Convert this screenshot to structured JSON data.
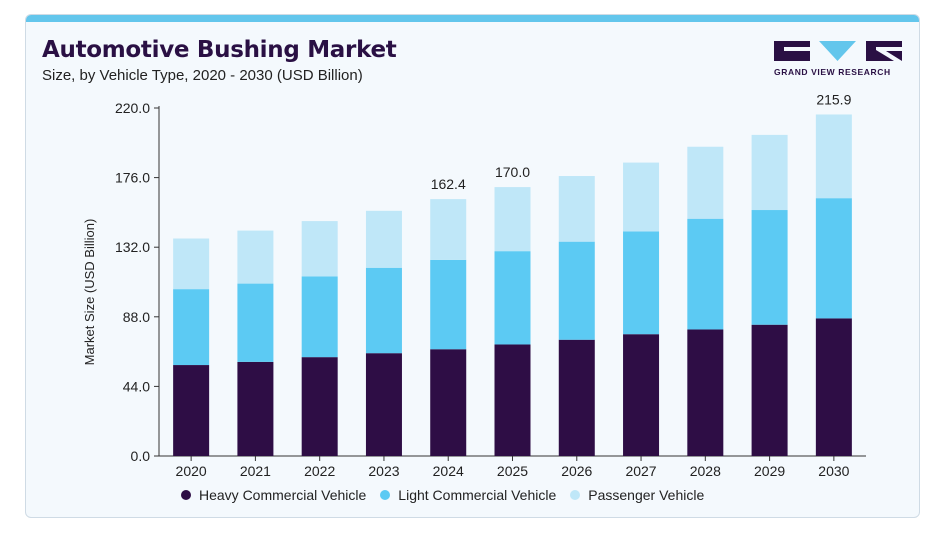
{
  "header": {
    "title": "Automotive Bushing Market",
    "subtitle": "Size, by Vehicle Type, 2020 - 2030 (USD Billion)"
  },
  "logo": {
    "text": "GRAND VIEW RESEARCH",
    "color": "#2a1044",
    "accent": "#63c6ec"
  },
  "chart_data": {
    "type": "bar",
    "stacked": true,
    "categories": [
      "2020",
      "2021",
      "2022",
      "2023",
      "2024",
      "2025",
      "2026",
      "2027",
      "2028",
      "2029",
      "2030"
    ],
    "series": [
      {
        "name": "Heavy Commercial Vehicle",
        "color": "#2e0d45",
        "values": [
          57.5,
          59.5,
          62.5,
          65.0,
          67.5,
          70.5,
          73.5,
          77.0,
          80.0,
          83.0,
          87.0
        ]
      },
      {
        "name": "Light Commercial Vehicle",
        "color": "#5ccaf3",
        "values": [
          48.0,
          49.5,
          51.0,
          54.0,
          56.5,
          59.0,
          62.0,
          65.0,
          70.0,
          72.5,
          76.0
        ]
      },
      {
        "name": "Passenger Vehicle",
        "color": "#bfe7f8",
        "values": [
          32.0,
          33.5,
          35.0,
          36.0,
          38.4,
          40.5,
          41.5,
          43.5,
          45.5,
          47.5,
          52.9
        ]
      }
    ],
    "data_labels": [
      {
        "category": "2024",
        "label": "162.4"
      },
      {
        "category": "2025",
        "label": "170.0"
      },
      {
        "category": "2030",
        "label": "215.9"
      }
    ],
    "ylabel": "Market Size (USD Billion)",
    "xlabel": "",
    "ylim": [
      0,
      220
    ],
    "yticks": [
      "0.0",
      "44.0",
      "88.0",
      "132.0",
      "176.0",
      "220.0"
    ],
    "grid": false,
    "legend_position": "bottom"
  }
}
